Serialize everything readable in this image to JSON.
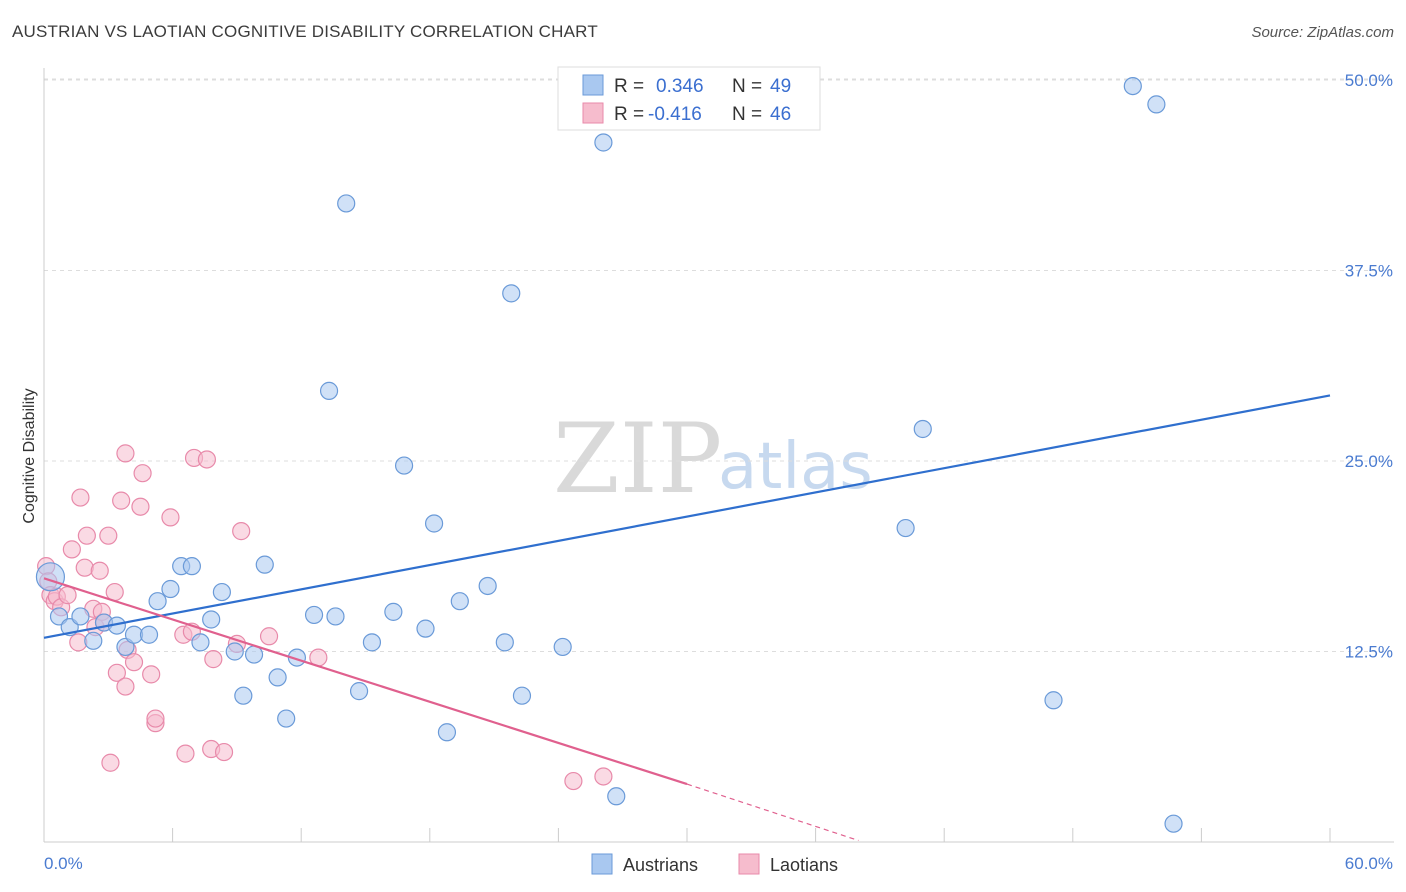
{
  "header": {
    "title": "AUSTRIAN VS LAOTIAN COGNITIVE DISABILITY CORRELATION CHART",
    "source": "Source: ZipAtlas.com"
  },
  "watermark": {
    "zip": "ZIP",
    "atlas": "atlas"
  },
  "legend": {
    "rows": [
      {
        "r_label": "R =",
        "r_value": "0.346",
        "n_label": "N =",
        "n_value": "49"
      },
      {
        "r_label": "R =",
        "r_value": "-0.416",
        "n_label": "N =",
        "n_value": "46"
      }
    ]
  },
  "bottom_legend": [
    {
      "label": "Austrians"
    },
    {
      "label": "Laotians"
    }
  ],
  "colors": {
    "austrians_fill": "#a9c8f0",
    "austrians_stroke": "#6a9ad8",
    "austrians_line": "#2f6fce",
    "laotians_fill": "#f6bccd",
    "laotians_stroke": "#e88aaa",
    "laotians_line": "#e0608e",
    "grid": "#dddddd",
    "tick_label": "#4a7bd0"
  },
  "chart_data": {
    "type": "scatter",
    "title": "AUSTRIAN VS LAOTIAN COGNITIVE DISABILITY CORRELATION CHART",
    "xlabel": "",
    "ylabel": "Cognitive Disability",
    "xlim": [
      0,
      60
    ],
    "ylim": [
      0,
      50
    ],
    "x_tick_labels": [
      "0.0%",
      "60.0%"
    ],
    "y_ticks": [
      12.5,
      25.0,
      37.5,
      50.0
    ],
    "y_tick_labels": [
      "12.5%",
      "25.0%",
      "37.5%",
      "50.0%"
    ],
    "grid": "horizontal dashed",
    "legend_position": "top-center",
    "series": [
      {
        "name": "Austrians",
        "points": [
          [
            0.3,
            17.4
          ],
          [
            0.7,
            14.8
          ],
          [
            1.2,
            14.1
          ],
          [
            1.7,
            14.8
          ],
          [
            2.3,
            13.2
          ],
          [
            2.8,
            14.4
          ],
          [
            3.4,
            14.2
          ],
          [
            3.8,
            12.8
          ],
          [
            4.2,
            13.6
          ],
          [
            4.9,
            13.6
          ],
          [
            5.3,
            15.8
          ],
          [
            5.9,
            16.6
          ],
          [
            6.4,
            18.1
          ],
          [
            6.9,
            18.1
          ],
          [
            7.3,
            13.1
          ],
          [
            7.8,
            14.6
          ],
          [
            8.3,
            16.4
          ],
          [
            8.9,
            12.5
          ],
          [
            9.3,
            9.6
          ],
          [
            9.8,
            12.3
          ],
          [
            10.3,
            18.2
          ],
          [
            10.9,
            10.8
          ],
          [
            11.3,
            8.1
          ],
          [
            11.8,
            12.1
          ],
          [
            12.6,
            14.9
          ],
          [
            13.3,
            29.6
          ],
          [
            13.6,
            14.8
          ],
          [
            14.1,
            41.9
          ],
          [
            14.7,
            9.9
          ],
          [
            15.3,
            13.1
          ],
          [
            16.3,
            15.1
          ],
          [
            16.8,
            24.7
          ],
          [
            17.8,
            14.0
          ],
          [
            18.2,
            20.9
          ],
          [
            18.8,
            7.2
          ],
          [
            19.4,
            15.8
          ],
          [
            20.7,
            16.8
          ],
          [
            21.5,
            13.1
          ],
          [
            21.8,
            36.0
          ],
          [
            22.3,
            9.6
          ],
          [
            24.2,
            12.8
          ],
          [
            26.1,
            45.9
          ],
          [
            26.7,
            3.0
          ],
          [
            40.2,
            20.6
          ],
          [
            41.0,
            27.1
          ],
          [
            47.1,
            9.3
          ],
          [
            50.8,
            49.6
          ],
          [
            51.9,
            48.4
          ],
          [
            52.7,
            1.2
          ]
        ],
        "trend": {
          "x": [
            0,
            60
          ],
          "y": [
            13.4,
            29.3
          ]
        }
      },
      {
        "name": "Laotians",
        "points": [
          [
            0.1,
            18.1
          ],
          [
            0.2,
            17.1
          ],
          [
            0.3,
            16.2
          ],
          [
            0.5,
            15.8
          ],
          [
            0.6,
            16.1
          ],
          [
            0.8,
            15.4
          ],
          [
            1.1,
            16.2
          ],
          [
            1.3,
            19.2
          ],
          [
            1.6,
            13.1
          ],
          [
            1.7,
            22.6
          ],
          [
            1.9,
            18.0
          ],
          [
            2.0,
            20.1
          ],
          [
            2.3,
            15.3
          ],
          [
            2.4,
            14.1
          ],
          [
            2.6,
            17.8
          ],
          [
            2.7,
            15.1
          ],
          [
            2.8,
            14.4
          ],
          [
            3.0,
            20.1
          ],
          [
            3.1,
            5.2
          ],
          [
            3.3,
            16.4
          ],
          [
            3.4,
            11.1
          ],
          [
            3.6,
            22.4
          ],
          [
            3.8,
            25.5
          ],
          [
            3.8,
            10.2
          ],
          [
            3.9,
            12.6
          ],
          [
            4.2,
            11.8
          ],
          [
            4.5,
            22.0
          ],
          [
            4.6,
            24.2
          ],
          [
            5.0,
            11.0
          ],
          [
            5.2,
            7.8
          ],
          [
            5.2,
            8.1
          ],
          [
            5.9,
            21.3
          ],
          [
            6.5,
            13.6
          ],
          [
            6.6,
            5.8
          ],
          [
            6.9,
            13.8
          ],
          [
            7.0,
            25.2
          ],
          [
            7.6,
            25.1
          ],
          [
            7.8,
            6.1
          ],
          [
            7.9,
            12.0
          ],
          [
            8.4,
            5.9
          ],
          [
            9.0,
            13.0
          ],
          [
            9.2,
            20.4
          ],
          [
            10.5,
            13.5
          ],
          [
            12.8,
            12.1
          ],
          [
            24.7,
            4.0
          ],
          [
            26.1,
            4.3
          ]
        ],
        "trend": {
          "x": [
            0,
            30
          ],
          "y": [
            17.3,
            3.8
          ]
        },
        "trend_extension": {
          "x": [
            30,
            38
          ],
          "y": [
            3.8,
            0.1
          ]
        }
      }
    ]
  }
}
